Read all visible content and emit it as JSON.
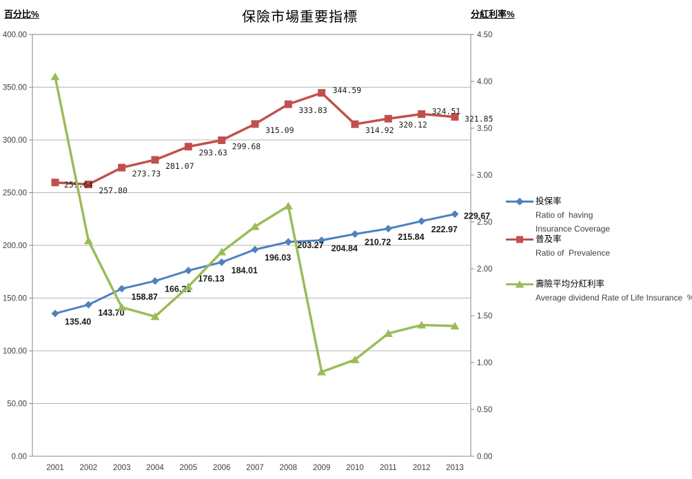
{
  "title": "保險市場重要指標",
  "left_axis_title": "百分比%",
  "right_axis_title": "分紅利率%",
  "colors": {
    "series_blue": "#4f81bd",
    "series_red": "#c0504d",
    "series_green": "#9bbb59",
    "gridline": "#b3b3b3",
    "axis_border": "#868686",
    "tick_text": "#404040",
    "label_text": "#1a1a1a"
  },
  "chart_data": {
    "type": "line",
    "x": [
      "2001",
      "2002",
      "2003",
      "2004",
      "2005",
      "2006",
      "2007",
      "2008",
      "2009",
      "2010",
      "2011",
      "2012",
      "2013"
    ],
    "left_axis": {
      "min": 0,
      "max": 400,
      "step": 50,
      "tick_labels": [
        "400.00",
        "350.00",
        "300.00",
        "250.00",
        "200.00",
        "150.00",
        "100.00",
        "50.00",
        "0.00"
      ]
    },
    "right_axis": {
      "min": 0,
      "max": 4.5,
      "step": 0.5,
      "tick_labels": [
        "4.50",
        "4.00",
        "3.50",
        "3.00",
        "2.50",
        "2.00",
        "1.50",
        "1.00",
        "0.50",
        "0.00"
      ]
    },
    "grid": "horizontal",
    "legend_position": "right",
    "series": [
      {
        "name": "投保率",
        "en": [
          "Ratio of  having",
          "Insurance Coverage"
        ],
        "axis": "left",
        "marker": "diamond",
        "color": "#4f81bd",
        "values": [
          135.4,
          143.7,
          158.87,
          166.21,
          176.13,
          184.01,
          196.03,
          203.27,
          204.84,
          210.72,
          215.84,
          222.97,
          229.67
        ],
        "labels": [
          "135.40",
          "143.70",
          "158.87",
          "166.21",
          "176.13",
          "184.01",
          "196.03",
          "203.27",
          "204.84",
          "210.72",
          "215.84",
          "222.97",
          "229.67"
        ]
      },
      {
        "name": "普及率",
        "en": [
          "Ratio of  Prevalence"
        ],
        "axis": "left",
        "marker": "square",
        "color": "#c0504d",
        "values": [
          259.64,
          257.8,
          273.73,
          281.07,
          293.63,
          299.68,
          315.09,
          333.83,
          344.59,
          314.92,
          320.12,
          324.51,
          321.85
        ],
        "labels": [
          "259.64",
          "257.80",
          "273.73",
          "281.07",
          "293.63",
          "299.68",
          "315.09",
          "333.83",
          "344.59",
          "314.92",
          "320.12",
          "324.51",
          "321.85"
        ]
      },
      {
        "name": "壽險平均分紅利率",
        "en": [
          "Average dividend Rate of Life Insurance  %"
        ],
        "axis": "right",
        "marker": "triangle",
        "color": "#9bbb59",
        "values": [
          4.05,
          2.3,
          1.59,
          1.49,
          1.81,
          2.18,
          2.45,
          2.67,
          0.9,
          1.03,
          1.31,
          1.4,
          1.39
        ],
        "labels": null
      }
    ]
  }
}
